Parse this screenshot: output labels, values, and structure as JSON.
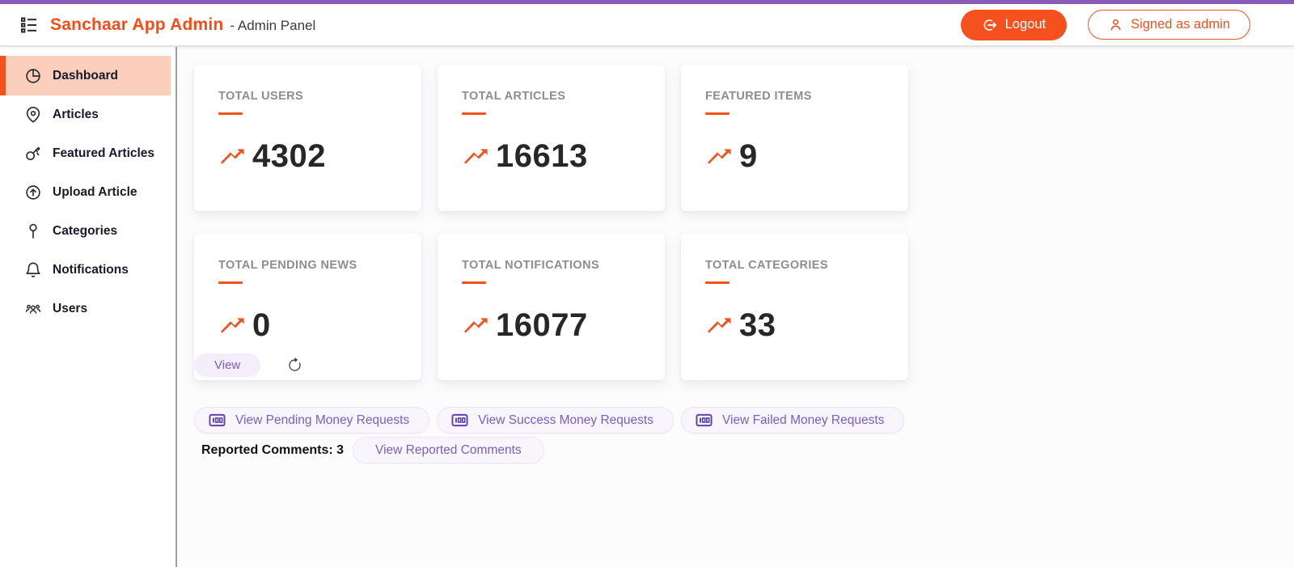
{
  "theme": {
    "accent_orange": "#f4511e",
    "brand_orange": "#f84c16",
    "active_item_bg": "#fbcfbb",
    "topbar_purple": "#8a5bb5",
    "pill_bg": "#f8f5fd",
    "pill_text": "#7a5ec0",
    "pill_icon_purple": "#5f43ad",
    "card_title_gray": "#8d8d8d",
    "stat_number_color": "#272727"
  },
  "header": {
    "brand": "Sanchaar App Admin",
    "subtitle": "- Admin Panel",
    "logout_label": "Logout",
    "signed_label": "Signed as admin",
    "menu_icon": "list-icon",
    "logout_icon": "logout-circle-arrow-icon",
    "signed_icon": "person-icon"
  },
  "sidebar": {
    "items": [
      {
        "label": "Dashboard",
        "icon": "pie-chart-icon",
        "active": true
      },
      {
        "label": "Articles",
        "icon": "map-pin-icon",
        "active": false
      },
      {
        "label": "Featured Articles",
        "icon": "key-icon",
        "active": false
      },
      {
        "label": "Upload Article",
        "icon": "upload-circle-icon",
        "active": false
      },
      {
        "label": "Categories",
        "icon": "push-pin-icon",
        "active": false
      },
      {
        "label": "Notifications",
        "icon": "bell-icon",
        "active": false
      },
      {
        "label": "Users",
        "icon": "users-group-icon",
        "active": false
      }
    ]
  },
  "cards": [
    {
      "title": "TOTAL USERS",
      "value": "4302",
      "icon": "trending-up-icon",
      "has_actions": false
    },
    {
      "title": "TOTAL ARTICLES",
      "value": "16613",
      "icon": "trending-up-icon",
      "has_actions": false
    },
    {
      "title": "FEATURED ITEMS",
      "value": "9",
      "icon": "trending-up-icon",
      "has_actions": false
    },
    {
      "title": "TOTAL PENDING NEWS",
      "value": "0",
      "icon": "trending-up-icon",
      "has_actions": true,
      "view_label": "View",
      "refresh_icon": "refresh-icon"
    },
    {
      "title": "TOTAL NOTIFICATIONS",
      "value": "16077",
      "icon": "trending-up-icon",
      "has_actions": false
    },
    {
      "title": "TOTAL CATEGORIES",
      "value": "33",
      "icon": "trending-up-icon",
      "has_actions": false
    }
  ],
  "money_buttons": [
    {
      "label": "View Pending Money Requests",
      "icon": "banknote-icon"
    },
    {
      "label": "View Success Money Requests",
      "icon": "banknote-icon"
    },
    {
      "label": "View Failed Money Requests",
      "icon": "banknote-icon"
    }
  ],
  "reported": {
    "label": "Reported Comments: 3",
    "button_label": "View Reported Comments"
  }
}
